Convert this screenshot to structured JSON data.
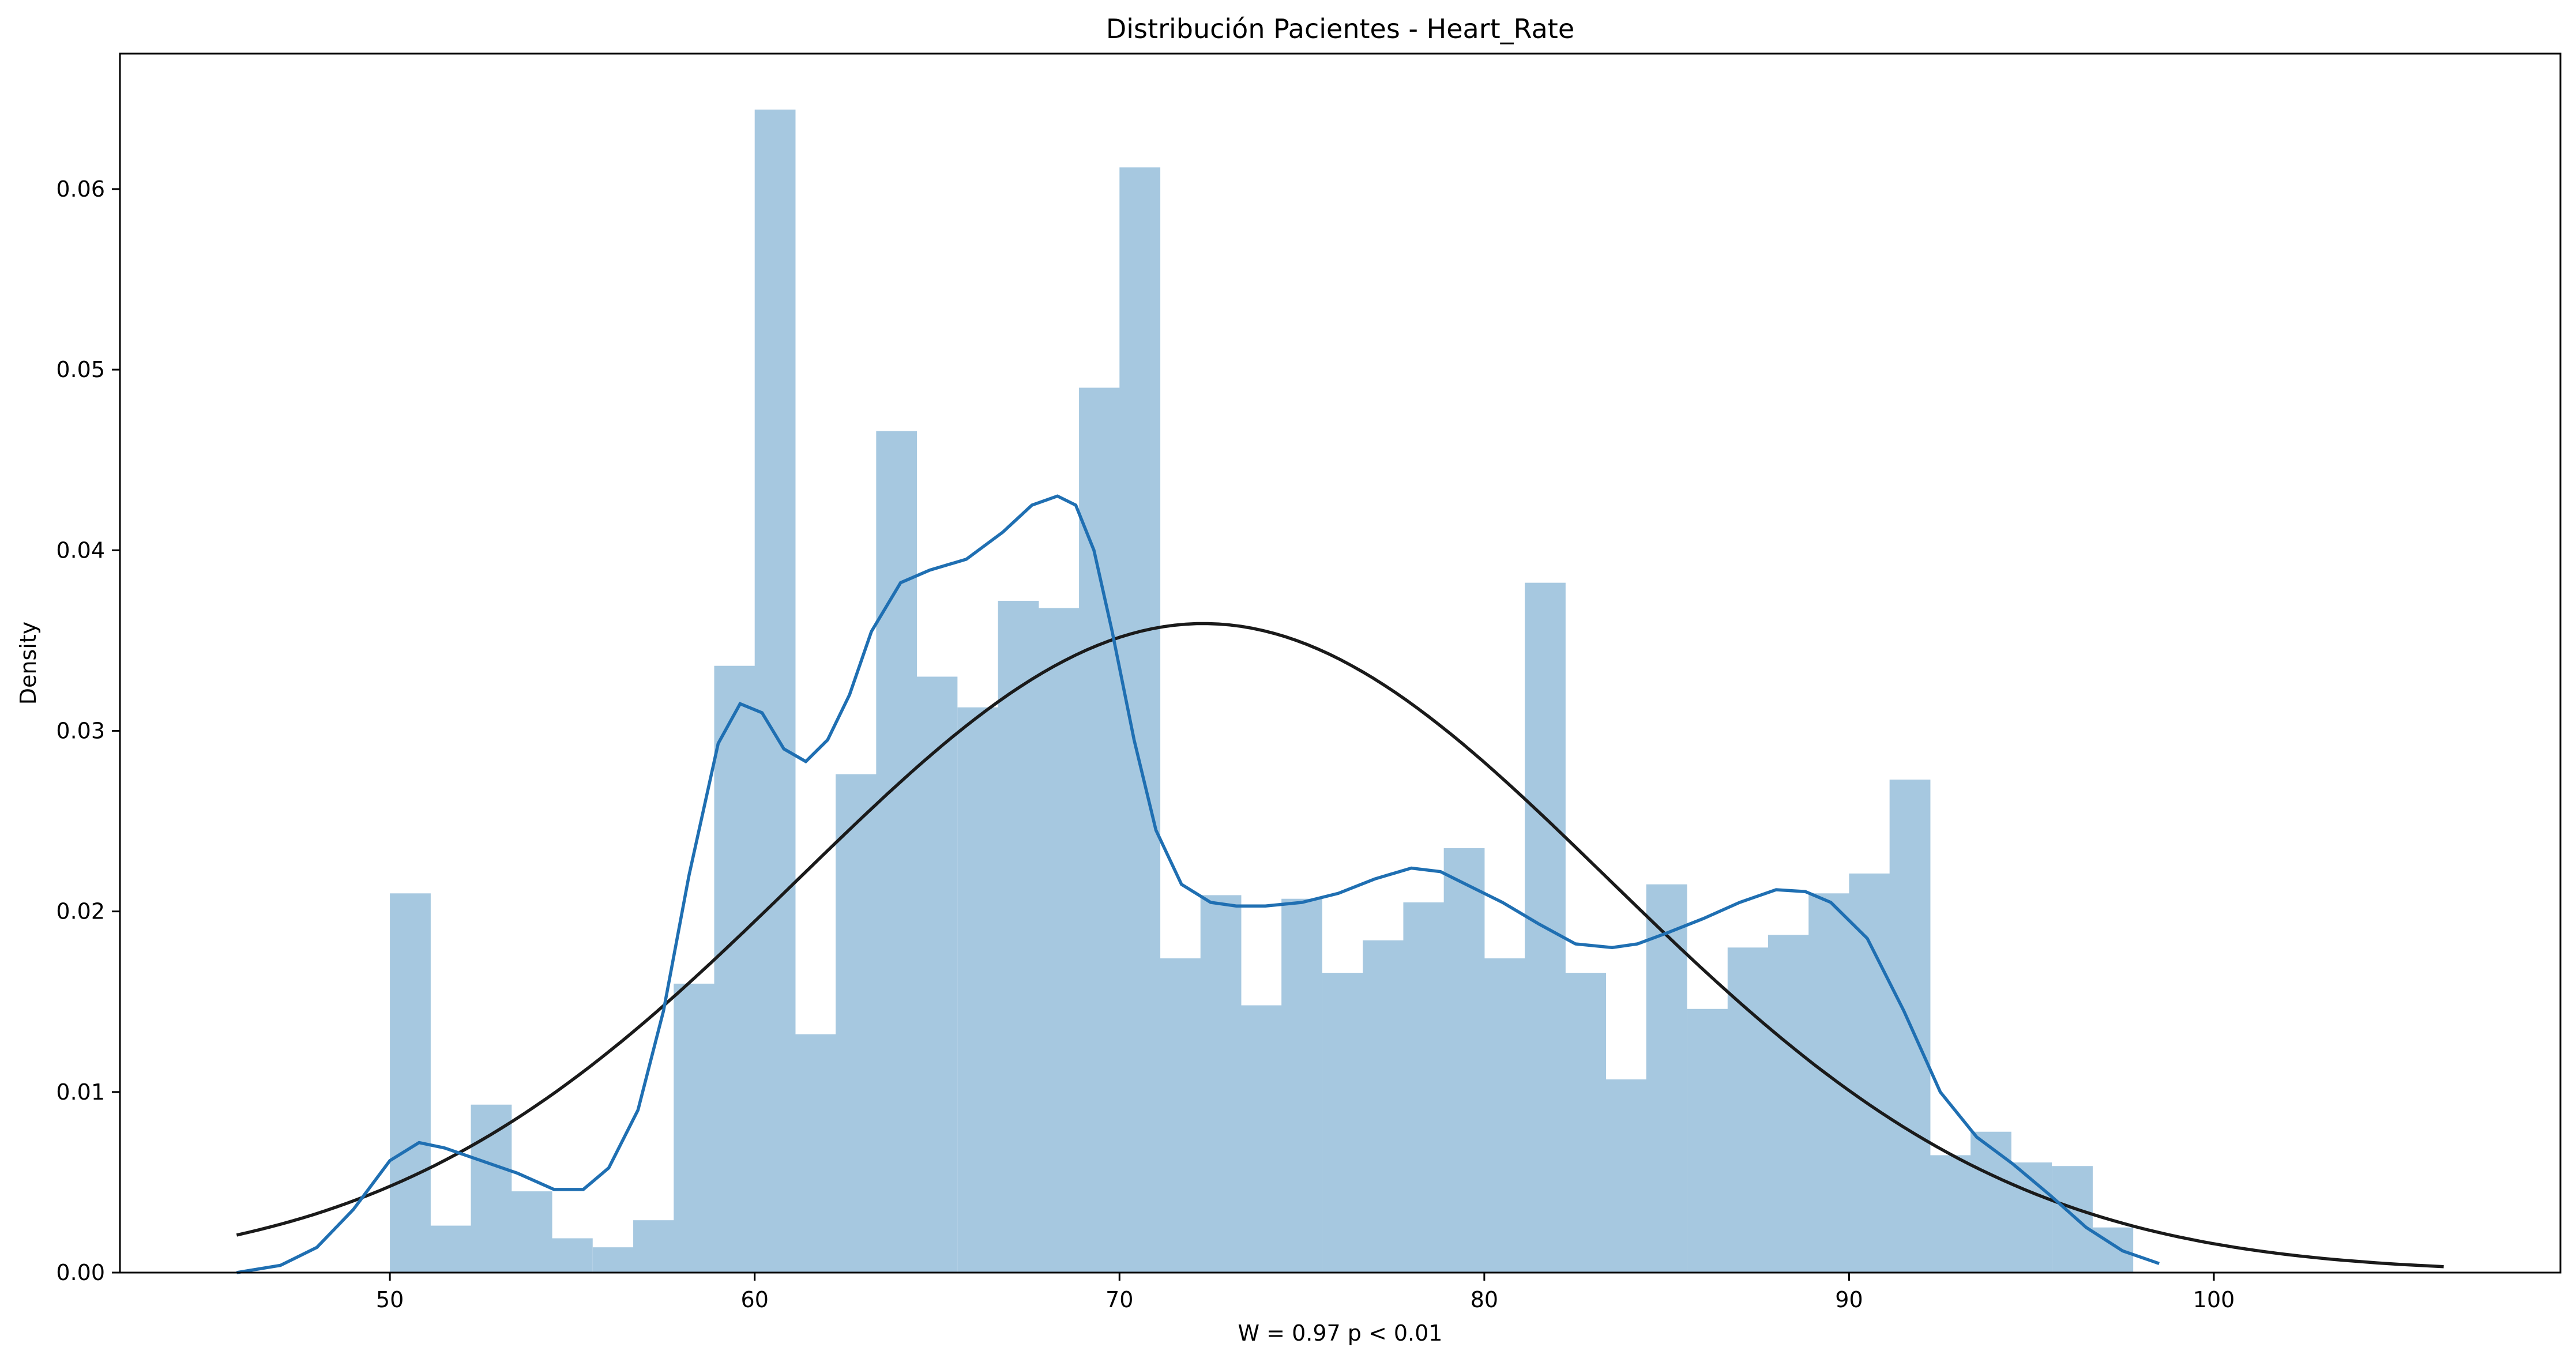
{
  "chart_data": {
    "type": "bar",
    "title": "Distribución Pacientes - Heart_Rate",
    "xlabel": "W = 0.97 p < 0.01",
    "ylabel": "Density",
    "xlim": [
      42.6,
      109.5
    ],
    "ylim": [
      0,
      0.0675
    ],
    "grid": false,
    "x_ticks": [
      50,
      60,
      70,
      80,
      90,
      100
    ],
    "y_ticks": [
      0.0,
      0.01,
      0.02,
      0.03,
      0.04,
      0.05,
      0.06
    ],
    "x_tick_labels": [
      "50",
      "60",
      "70",
      "80",
      "90",
      "100"
    ],
    "y_tick_labels": [
      "0.00",
      "0.01",
      "0.02",
      "0.03",
      "0.04",
      "0.05",
      "0.06"
    ],
    "bar_color": "#a6c8e0",
    "kde_color": "#1f6fb2",
    "normal_color": "#1a1a1a",
    "bin_width": 1.111,
    "bins": {
      "left_edges": [
        50.0,
        51.11,
        52.22,
        53.33,
        54.44,
        55.56,
        56.67,
        57.78,
        58.89,
        60.0,
        61.11,
        62.22,
        63.33,
        64.44,
        65.56,
        66.67,
        67.78,
        68.89,
        70.0,
        71.11,
        72.22,
        73.33,
        74.44,
        75.56,
        76.67,
        77.78,
        78.89,
        80.0,
        81.11,
        82.22,
        83.33,
        84.44,
        85.56,
        86.67,
        87.78,
        88.89,
        90.0,
        91.11,
        92.22,
        93.33,
        94.44,
        95.56,
        96.67
      ],
      "densities": [
        0.021,
        0.0026,
        0.0093,
        0.0045,
        0.0019,
        0.0014,
        0.0029,
        0.016,
        0.0336,
        0.0644,
        0.0132,
        0.0276,
        0.0466,
        0.033,
        0.0313,
        0.0372,
        0.0368,
        0.049,
        0.0612,
        0.0174,
        0.0209,
        0.0148,
        0.0207,
        0.0166,
        0.0184,
        0.0205,
        0.0235,
        0.0174,
        0.0382,
        0.0166,
        0.0107,
        0.0215,
        0.0146,
        0.018,
        0.0187,
        0.021,
        0.0221,
        0.0273,
        0.0065,
        0.0078,
        0.0061,
        0.0059,
        0.0025
      ]
    },
    "series": [
      {
        "type": "kde",
        "x": [
          45.8,
          47.0,
          48.0,
          49.0,
          50.0,
          50.8,
          51.5,
          52.5,
          53.5,
          54.5,
          55.3,
          56.0,
          56.8,
          57.5,
          58.2,
          59.0,
          59.6,
          60.2,
          60.8,
          61.4,
          62.0,
          62.6,
          63.2,
          64.0,
          64.8,
          65.8,
          66.8,
          67.6,
          68.3,
          68.8,
          69.3,
          69.8,
          70.4,
          71.0,
          71.7,
          72.5,
          73.2,
          74.0,
          75.0,
          76.0,
          77.0,
          78.0,
          78.8,
          79.5,
          80.5,
          81.5,
          82.5,
          83.5,
          84.2,
          85.0,
          86.0,
          87.0,
          88.0,
          88.8,
          89.5,
          90.5,
          91.5,
          92.5,
          93.5,
          94.5,
          95.5,
          96.5,
          97.5,
          98.5
        ],
        "y": [
          0.0,
          0.0004,
          0.0014,
          0.0035,
          0.0062,
          0.0072,
          0.0069,
          0.0062,
          0.0055,
          0.0046,
          0.0046,
          0.0058,
          0.009,
          0.0145,
          0.022,
          0.0293,
          0.0315,
          0.031,
          0.029,
          0.0283,
          0.0295,
          0.032,
          0.0355,
          0.0382,
          0.0389,
          0.0395,
          0.041,
          0.0425,
          0.043,
          0.0425,
          0.04,
          0.0355,
          0.0295,
          0.0245,
          0.0215,
          0.0205,
          0.0203,
          0.0203,
          0.0205,
          0.021,
          0.0218,
          0.0224,
          0.0222,
          0.0215,
          0.0205,
          0.0193,
          0.0182,
          0.018,
          0.0182,
          0.0188,
          0.0196,
          0.0205,
          0.0212,
          0.0211,
          0.0205,
          0.0185,
          0.0145,
          0.01,
          0.0075,
          0.006,
          0.0043,
          0.0025,
          0.0012,
          0.0005
        ]
      },
      {
        "type": "normal_fit",
        "mean": 72.3,
        "std": 11.1,
        "x_range": [
          45.8,
          106.3
        ]
      }
    ]
  }
}
